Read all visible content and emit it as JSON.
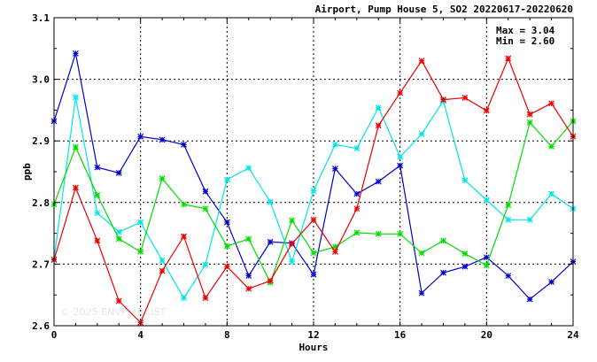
{
  "chart_data": {
    "type": "line",
    "title": "Airport, Pump House 5, SO2 20220617-20220620",
    "xlabel": "Hours",
    "ylabel": "ppb",
    "xlim": [
      0,
      24
    ],
    "ylim": [
      2.6,
      3.1
    ],
    "xticks": [
      0,
      4,
      8,
      12,
      16,
      20,
      24
    ],
    "yticks": [
      2.6,
      2.7,
      2.8,
      2.9,
      3.0,
      3.1
    ],
    "ytick_labels": [
      "2.6",
      "2.7",
      "2.8",
      "2.9",
      "3.0",
      "3.1"
    ],
    "grid": true,
    "max_label": "Max = 3.04",
    "min_label": "Min = 2.60",
    "watermark": "© 2025 ENVP, HKUST",
    "x": [
      0,
      1,
      2,
      3,
      4,
      5,
      6,
      7,
      8,
      9,
      10,
      11,
      12,
      13,
      14,
      15,
      16,
      17,
      18,
      19,
      20,
      21,
      22,
      23,
      24
    ],
    "series": [
      {
        "color": "#0000cc",
        "values": [
          2.932,
          3.042,
          2.857,
          2.848,
          2.907,
          2.902,
          2.894,
          2.818,
          2.768,
          2.681,
          2.736,
          2.734,
          2.683,
          2.855,
          2.814,
          2.834,
          2.86,
          2.653,
          2.686,
          2.696,
          2.711,
          2.681,
          2.643,
          2.671,
          2.704
        ]
      },
      {
        "color": "#00e5e5",
        "values": [
          2.708,
          2.971,
          2.783,
          2.752,
          2.768,
          2.706,
          2.645,
          2.699,
          2.837,
          2.856,
          2.801,
          2.704,
          2.819,
          2.894,
          2.888,
          2.954,
          2.874,
          2.911,
          2.965,
          2.836,
          2.804,
          2.772,
          2.772,
          2.814,
          2.79
        ]
      },
      {
        "color": "#00dd00",
        "values": [
          2.797,
          2.89,
          2.812,
          2.741,
          2.72,
          2.839,
          2.797,
          2.79,
          2.729,
          2.741,
          2.67,
          2.771,
          2.718,
          2.728,
          2.751,
          2.749,
          2.749,
          2.718,
          2.738,
          2.717,
          2.698,
          2.796,
          2.93,
          2.891,
          2.932
        ]
      },
      {
        "color": "#ee0000",
        "values": [
          2.707,
          2.824,
          2.738,
          2.64,
          2.605,
          2.689,
          2.745,
          2.645,
          2.696,
          2.66,
          2.673,
          2.733,
          2.772,
          2.72,
          2.79,
          2.925,
          2.978,
          3.03,
          2.967,
          2.97,
          2.949,
          3.034,
          2.943,
          2.961,
          2.907
        ]
      }
    ]
  }
}
